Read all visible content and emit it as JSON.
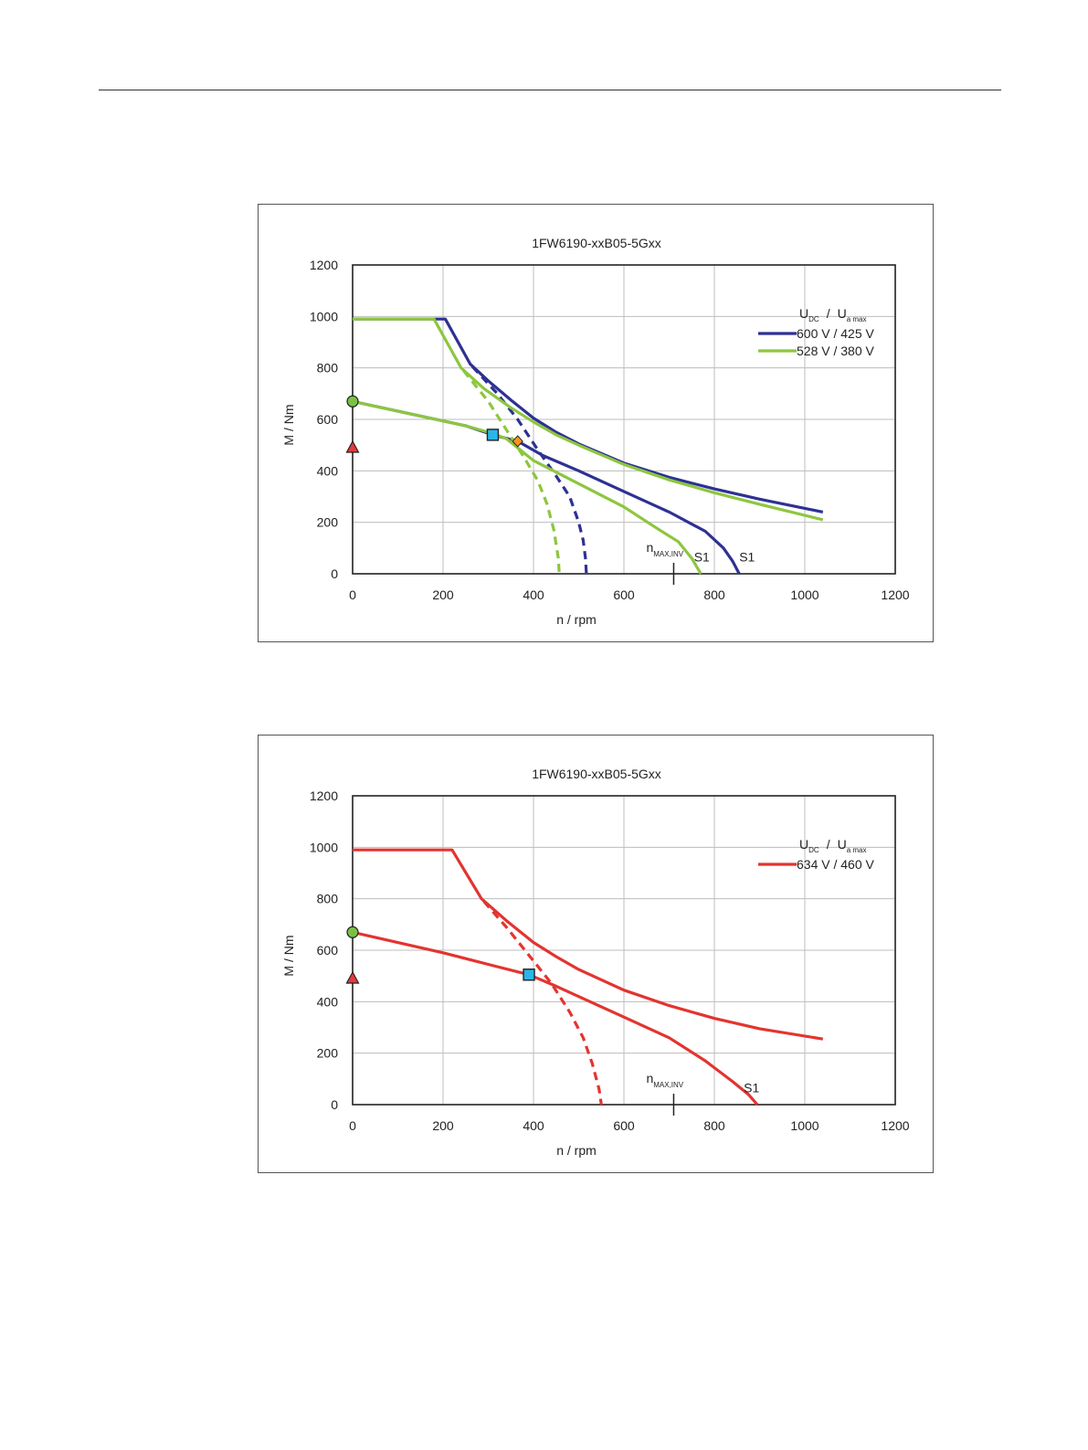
{
  "chart_data": [
    {
      "type": "line",
      "title": "1FW6190-xxB05-5Gxx",
      "xlabel": "n / rpm",
      "ylabel": "M / Nm",
      "xlim": [
        0,
        1200
      ],
      "ylim": [
        0,
        1200
      ],
      "xticks": [
        0,
        200,
        400,
        600,
        800,
        1000,
        1200
      ],
      "yticks": [
        0,
        200,
        400,
        600,
        800,
        1000,
        1200
      ],
      "grid": true,
      "legend_position": "top-right",
      "legend_header": {
        "u": "U",
        "dc": "DC",
        "slash": "/",
        "u2": "U",
        "amax": "a max"
      },
      "series": [
        {
          "name": "600 V / 425 V",
          "color": "#2e3192",
          "dash": false,
          "points": [
            [
              0,
              990
            ],
            [
              205,
              990
            ],
            [
              260,
              815
            ],
            [
              300,
              750
            ],
            [
              350,
              675
            ],
            [
              400,
              605
            ],
            [
              450,
              550
            ],
            [
              500,
              505
            ],
            [
              600,
              430
            ],
            [
              700,
              375
            ],
            [
              800,
              330
            ],
            [
              900,
              290
            ],
            [
              1040,
              240
            ]
          ]
        },
        {
          "name": "",
          "color": "#2e3192",
          "dash": false,
          "points": [
            [
              0,
              670
            ],
            [
              250,
              575
            ],
            [
              310,
              540
            ],
            [
              365,
              515
            ],
            [
              420,
              460
            ],
            [
              500,
              400
            ],
            [
              600,
              320
            ],
            [
              700,
              240
            ],
            [
              780,
              165
            ],
            [
              820,
              100
            ],
            [
              840,
              50
            ],
            [
              855,
              0
            ]
          ]
        },
        {
          "name": "",
          "color": "#2e3192",
          "dash": true,
          "points": [
            [
              265,
              805
            ],
            [
              320,
              700
            ],
            [
              365,
              600
            ],
            [
              410,
              480
            ],
            [
              450,
              380
            ],
            [
              480,
              300
            ],
            [
              500,
              200
            ],
            [
              510,
              130
            ],
            [
              515,
              60
            ],
            [
              517,
              0
            ]
          ]
        },
        {
          "name": "528 V / 380 V",
          "color": "#8dc63f",
          "dash": false,
          "points": [
            [
              0,
              990
            ],
            [
              180,
              990
            ],
            [
              240,
              800
            ],
            [
              290,
              720
            ],
            [
              350,
              645
            ],
            [
              400,
              590
            ],
            [
              450,
              540
            ],
            [
              500,
              500
            ],
            [
              600,
              425
            ],
            [
              700,
              365
            ],
            [
              800,
              315
            ],
            [
              900,
              270
            ],
            [
              1040,
              210
            ]
          ]
        },
        {
          "name": "",
          "color": "#8dc63f",
          "dash": false,
          "points": [
            [
              0,
              670
            ],
            [
              250,
              575
            ],
            [
              310,
              545
            ],
            [
              340,
              525
            ],
            [
              400,
              440
            ],
            [
              500,
              350
            ],
            [
              600,
              260
            ],
            [
              670,
              180
            ],
            [
              720,
              125
            ],
            [
              750,
              60
            ],
            [
              770,
              0
            ]
          ]
        },
        {
          "name": "",
          "color": "#8dc63f",
          "dash": true,
          "points": [
            [
              245,
              790
            ],
            [
              300,
              670
            ],
            [
              340,
              560
            ],
            [
              380,
              450
            ],
            [
              410,
              360
            ],
            [
              430,
              270
            ],
            [
              445,
              170
            ],
            [
              455,
              60
            ],
            [
              457,
              0
            ]
          ]
        }
      ],
      "markers": [
        {
          "shape": "circle",
          "x": 0,
          "y": 670,
          "color": "#7ac143"
        },
        {
          "shape": "triangle",
          "x": 0,
          "y": 490,
          "color": "#e8393c"
        },
        {
          "shape": "square",
          "x": 310,
          "y": 540,
          "color": "#29b6e8"
        },
        {
          "shape": "diamond",
          "x": 365,
          "y": 515,
          "color": "#f7941d"
        }
      ],
      "annotations": [
        {
          "text": "S1",
          "x": 755,
          "y": 40
        },
        {
          "text": "S1",
          "x": 855,
          "y": 40
        }
      ],
      "nmax": {
        "x": 710,
        "label_n": "n",
        "label_sub": "MAX,INV"
      }
    },
    {
      "type": "line",
      "title": "1FW6190-xxB05-5Gxx",
      "xlabel": "n / rpm",
      "ylabel": "M / Nm",
      "xlim": [
        0,
        1200
      ],
      "ylim": [
        0,
        1200
      ],
      "xticks": [
        0,
        200,
        400,
        600,
        800,
        1000,
        1200
      ],
      "yticks": [
        0,
        200,
        400,
        600,
        800,
        1000,
        1200
      ],
      "grid": true,
      "legend_position": "top-right",
      "legend_header": {
        "u": "U",
        "dc": "DC",
        "slash": "/",
        "u2": "U",
        "amax": "a max"
      },
      "series": [
        {
          "name": "634 V / 460 V",
          "color": "#e3342f",
          "dash": false,
          "points": [
            [
              0,
              990
            ],
            [
              220,
              990
            ],
            [
              285,
              800
            ],
            [
              340,
              715
            ],
            [
              400,
              630
            ],
            [
              450,
              575
            ],
            [
              500,
              525
            ],
            [
              600,
              445
            ],
            [
              700,
              385
            ],
            [
              800,
              335
            ],
            [
              900,
              295
            ],
            [
              1040,
              255
            ]
          ]
        },
        {
          "name": "",
          "color": "#e3342f",
          "dash": false,
          "points": [
            [
              0,
              670
            ],
            [
              200,
              590
            ],
            [
              300,
              545
            ],
            [
              390,
              505
            ],
            [
              450,
              460
            ],
            [
              500,
              420
            ],
            [
              600,
              340
            ],
            [
              700,
              260
            ],
            [
              780,
              170
            ],
            [
              840,
              90
            ],
            [
              875,
              40
            ],
            [
              895,
              0
            ]
          ]
        },
        {
          "name": "",
          "color": "#e3342f",
          "dash": true,
          "points": [
            [
              290,
              790
            ],
            [
              340,
              690
            ],
            [
              390,
              580
            ],
            [
              440,
              470
            ],
            [
              480,
              360
            ],
            [
              510,
              260
            ],
            [
              530,
              160
            ],
            [
              545,
              60
            ],
            [
              550,
              0
            ]
          ]
        }
      ],
      "markers": [
        {
          "shape": "circle",
          "x": 0,
          "y": 670,
          "color": "#7ac143"
        },
        {
          "shape": "triangle",
          "x": 0,
          "y": 490,
          "color": "#e8393c"
        },
        {
          "shape": "square",
          "x": 390,
          "y": 505,
          "color": "#29b6e8"
        }
      ],
      "annotations": [
        {
          "text": "S1",
          "x": 865,
          "y": 40
        }
      ],
      "nmax": {
        "x": 710,
        "label_n": "n",
        "label_sub": "MAX,INV"
      }
    }
  ]
}
